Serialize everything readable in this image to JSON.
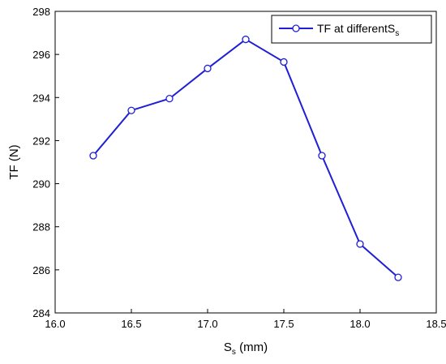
{
  "chart_data": {
    "type": "line",
    "xlabel": {
      "main": "S",
      "sub": "s",
      "rest": " (mm)"
    },
    "ylabel": "TF (N)",
    "xlim": [
      16.0,
      18.5
    ],
    "ylim": [
      284,
      298
    ],
    "x_ticks": [
      "16.0",
      "16.5",
      "17.0",
      "17.5",
      "18.0",
      "18.5"
    ],
    "y_ticks": [
      "284",
      "286",
      "288",
      "290",
      "292",
      "294",
      "296",
      "298"
    ],
    "grid": false,
    "legend_position": "top-right",
    "series": [
      {
        "name": {
          "main": "TF at differentS",
          "sub": "s"
        },
        "color": "#1f1fd6",
        "marker": "open-circle",
        "x": [
          16.25,
          16.5,
          16.75,
          17.0,
          17.25,
          17.5,
          17.75,
          18.0,
          18.25
        ],
        "y": [
          291.3,
          293.4,
          293.95,
          295.35,
          296.7,
          295.65,
          291.3,
          287.2,
          285.65
        ]
      }
    ]
  }
}
